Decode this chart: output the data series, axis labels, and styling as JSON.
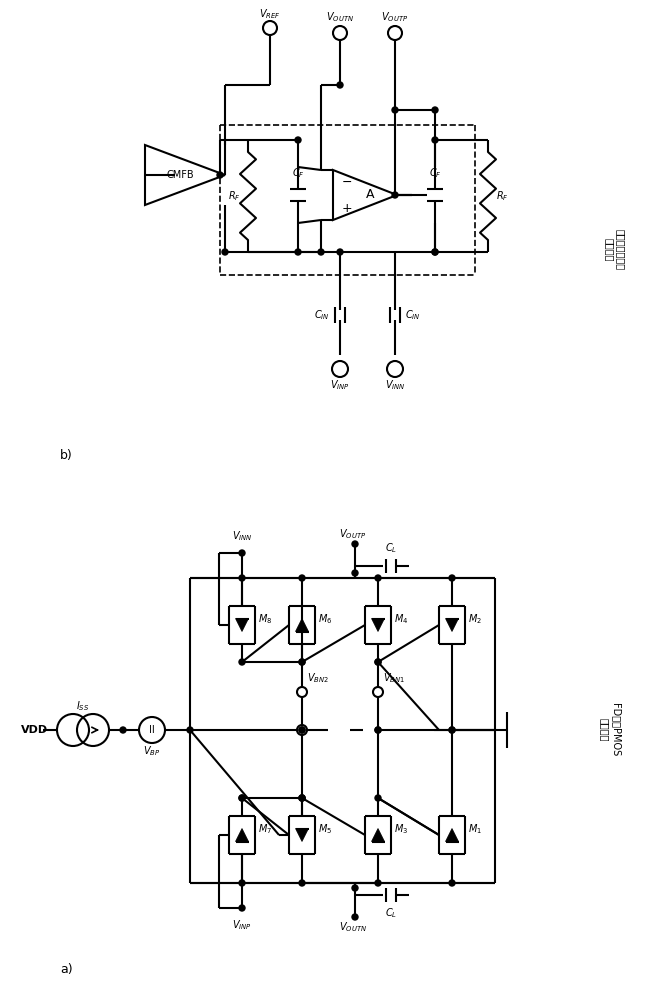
{
  "bg": "#ffffff",
  "lc": "#000000",
  "lw": 1.5,
  "label_a": "a)",
  "label_b": "b)",
  "text_right_top": "具有反馈电路的\n伸缩装置",
  "text_right_bottom": "FD伸缩PMOS\n晶体管层"
}
